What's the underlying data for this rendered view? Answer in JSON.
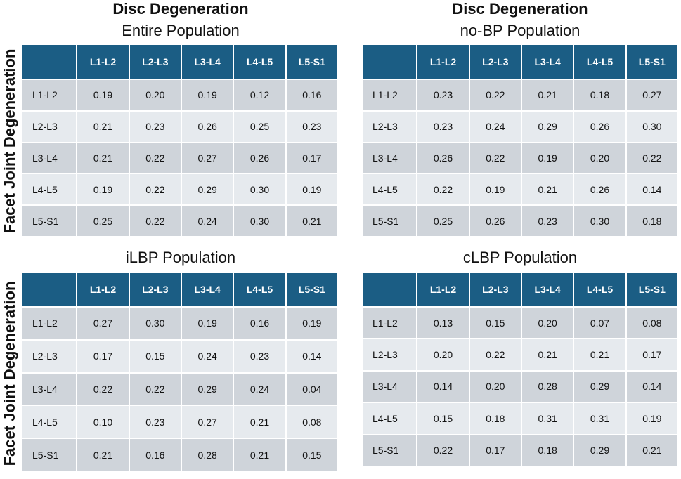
{
  "colors": {
    "header": "#1b5d84",
    "row_dark": "#cfd4da",
    "row_light": "#e6eaee"
  },
  "side_label": "Facet Joint Degeneration",
  "chart_data": [
    {
      "type": "table",
      "title": "Disc Degeneration",
      "subtitle": "Entire Population",
      "column_axis": "Disc Degeneration",
      "row_axis": "Facet Joint Degeneration",
      "columns": [
        "L1-L2",
        "L2-L3",
        "L3-L4",
        "L4-L5",
        "L5-S1"
      ],
      "rows": [
        {
          "label": "L1-L2",
          "values": [
            "0.19",
            "0.20",
            "0.19",
            "0.12",
            "0.16"
          ]
        },
        {
          "label": "L2-L3",
          "values": [
            "0.21",
            "0.23",
            "0.26",
            "0.25",
            "0.23"
          ]
        },
        {
          "label": "L3-L4",
          "values": [
            "0.21",
            "0.22",
            "0.27",
            "0.26",
            "0.17"
          ]
        },
        {
          "label": "L4-L5",
          "values": [
            "0.19",
            "0.22",
            "0.29",
            "0.30",
            "0.19"
          ]
        },
        {
          "label": "L5-S1",
          "values": [
            "0.25",
            "0.22",
            "0.24",
            "0.30",
            "0.21"
          ]
        }
      ]
    },
    {
      "type": "table",
      "title": "Disc Degeneration",
      "subtitle": "no-BP Population",
      "column_axis": "Disc Degeneration",
      "row_axis": "Facet Joint Degeneration",
      "columns": [
        "L1-L2",
        "L2-L3",
        "L3-L4",
        "L4-L5",
        "L5-S1"
      ],
      "rows": [
        {
          "label": "L1-L2",
          "values": [
            "0.23",
            "0.22",
            "0.21",
            "0.18",
            "0.27"
          ]
        },
        {
          "label": "L2-L3",
          "values": [
            "0.23",
            "0.24",
            "0.29",
            "0.26",
            "0.30"
          ]
        },
        {
          "label": "L3-L4",
          "values": [
            "0.26",
            "0.22",
            "0.19",
            "0.20",
            "0.22"
          ]
        },
        {
          "label": "L4-L5",
          "values": [
            "0.22",
            "0.19",
            "0.21",
            "0.26",
            "0.14"
          ]
        },
        {
          "label": "L5-S1",
          "values": [
            "0.25",
            "0.26",
            "0.23",
            "0.30",
            "0.18"
          ]
        }
      ]
    },
    {
      "type": "table",
      "title": "",
      "subtitle": "iLBP Population",
      "column_axis": "Disc Degeneration",
      "row_axis": "Facet Joint Degeneration",
      "columns": [
        "L1-L2",
        "L2-L3",
        "L3-L4",
        "L4-L5",
        "L5-S1"
      ],
      "rows": [
        {
          "label": "L1-L2",
          "values": [
            "0.27",
            "0.30",
            "0.19",
            "0.16",
            "0.19"
          ]
        },
        {
          "label": "L2-L3",
          "values": [
            "0.17",
            "0.15",
            "0.24",
            "0.23",
            "0.14"
          ]
        },
        {
          "label": "L3-L4",
          "values": [
            "0.22",
            "0.22",
            "0.29",
            "0.24",
            "0.04"
          ]
        },
        {
          "label": "L4-L5",
          "values": [
            "0.10",
            "0.23",
            "0.27",
            "0.21",
            "0.08"
          ]
        },
        {
          "label": "L5-S1",
          "values": [
            "0.21",
            "0.16",
            "0.28",
            "0.21",
            "0.15"
          ]
        }
      ]
    },
    {
      "type": "table",
      "title": "",
      "subtitle": "cLBP Population",
      "column_axis": "Disc Degeneration",
      "row_axis": "Facet Joint Degeneration",
      "columns": [
        "L1-L2",
        "L2-L3",
        "L3-L4",
        "L4-L5",
        "L5-S1"
      ],
      "rows": [
        {
          "label": "L1-L2",
          "values": [
            "0.13",
            "0.15",
            "0.20",
            "0.07",
            "0.08"
          ]
        },
        {
          "label": "L2-L3",
          "values": [
            "0.20",
            "0.22",
            "0.21",
            "0.21",
            "0.17"
          ]
        },
        {
          "label": "L3-L4",
          "values": [
            "0.14",
            "0.20",
            "0.28",
            "0.29",
            "0.14"
          ]
        },
        {
          "label": "L4-L5",
          "values": [
            "0.15",
            "0.18",
            "0.31",
            "0.31",
            "0.19"
          ]
        },
        {
          "label": "L5-S1",
          "values": [
            "0.22",
            "0.17",
            "0.18",
            "0.29",
            "0.21"
          ]
        }
      ]
    }
  ]
}
